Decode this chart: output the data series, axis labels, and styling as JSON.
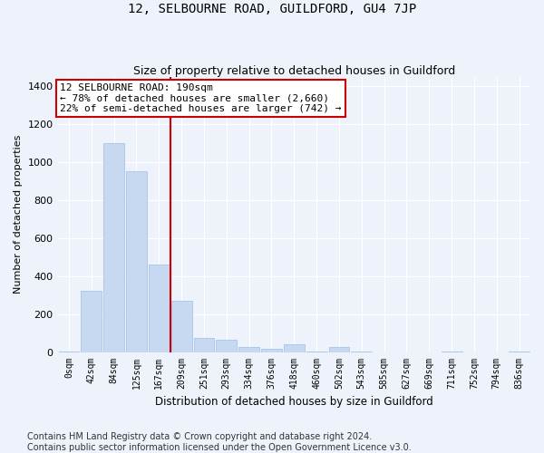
{
  "title": "12, SELBOURNE ROAD, GUILDFORD, GU4 7JP",
  "subtitle": "Size of property relative to detached houses in Guildford",
  "xlabel": "Distribution of detached houses by size in Guildford",
  "ylabel": "Number of detached properties",
  "bar_color": "#c6d9f1",
  "bar_edge_color": "#9dbde8",
  "background_color": "#eef2fa",
  "grid_color": "#ffffff",
  "categories": [
    "0sqm",
    "42sqm",
    "84sqm",
    "125sqm",
    "167sqm",
    "209sqm",
    "251sqm",
    "293sqm",
    "334sqm",
    "376sqm",
    "418sqm",
    "460sqm",
    "502sqm",
    "543sqm",
    "585sqm",
    "627sqm",
    "669sqm",
    "711sqm",
    "752sqm",
    "794sqm",
    "836sqm"
  ],
  "values": [
    5,
    320,
    1100,
    950,
    460,
    270,
    75,
    65,
    25,
    15,
    40,
    5,
    25,
    5,
    0,
    0,
    0,
    5,
    0,
    0,
    5
  ],
  "ylim": [
    0,
    1450
  ],
  "yticks": [
    0,
    200,
    400,
    600,
    800,
    1000,
    1200,
    1400
  ],
  "vline_x": 4.5,
  "vline_color": "#cc0000",
  "annotation_text": "12 SELBOURNE ROAD: 190sqm\n← 78% of detached houses are smaller (2,660)\n22% of semi-detached houses are larger (742) →",
  "annotation_box_color": "#ffffff",
  "annotation_box_edge": "#cc0000",
  "footer_line1": "Contains HM Land Registry data © Crown copyright and database right 2024.",
  "footer_line2": "Contains public sector information licensed under the Open Government Licence v3.0.",
  "title_fontsize": 10,
  "subtitle_fontsize": 9,
  "annotation_fontsize": 8,
  "footer_fontsize": 7,
  "ylabel_fontsize": 8,
  "xlabel_fontsize": 8.5
}
